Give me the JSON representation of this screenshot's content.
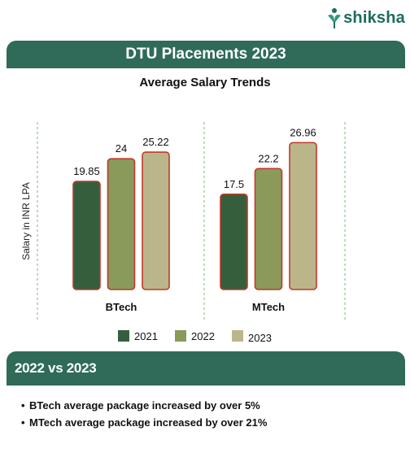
{
  "brand": {
    "name": "shiksha",
    "color": "#1d6b5e"
  },
  "banner": {
    "title": "DTU Placements 2023",
    "color": "#2f6b58"
  },
  "chart_data": {
    "type": "bar",
    "title": "Average Salary Trends",
    "ylabel": "Salary in INR LPA",
    "xlabel": "",
    "categories": [
      "BTech",
      "MTech"
    ],
    "series": [
      {
        "name": "2021",
        "values": [
          19.85,
          17.5
        ],
        "labels": [
          "19.85",
          "17.5"
        ],
        "color": "#355f3c"
      },
      {
        "name": "2022",
        "values": [
          24,
          22.2
        ],
        "labels": [
          "24",
          "22.2"
        ],
        "color": "#8a9a5a"
      },
      {
        "name": "2023",
        "values": [
          25.22,
          26.96
        ],
        "labels": [
          "25.22",
          "26.96"
        ],
        "color": "#bbb68a"
      }
    ],
    "ylim": [
      0,
      30
    ],
    "grid": false,
    "legend": "bottom",
    "separator_color": "#7cb77c"
  },
  "section": {
    "title": "2022 vs 2023"
  },
  "bullets": [
    "BTech average package increased by over 5%",
    "MTech average package increased by over 21%"
  ]
}
